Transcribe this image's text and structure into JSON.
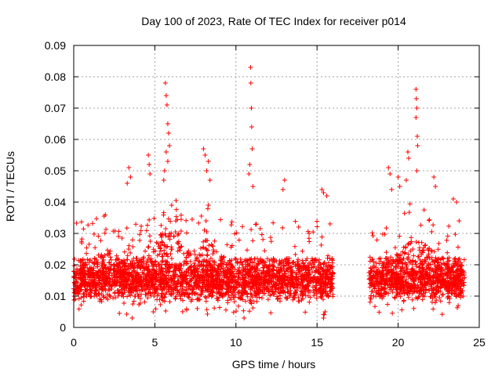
{
  "chart_data": {
    "type": "scatter",
    "title": "Day 100 of 2023, Rate Of TEC Index for receiver p014",
    "xlabel": "GPS time / hours",
    "ylabel": "ROTI / TECUs",
    "xlim": [
      0,
      25
    ],
    "ylim": [
      0,
      0.09
    ],
    "xticks": [
      "0",
      "5",
      "10",
      "15",
      "20",
      "25"
    ],
    "yticks": [
      "0",
      "0.01",
      "0.02",
      "0.03",
      "0.04",
      "0.05",
      "0.06",
      "0.07",
      "0.08",
      "0.09"
    ],
    "grid": true,
    "marker": "plus",
    "series_color": "#ff0000",
    "data_gap_hours": [
      16.0,
      18.2
    ],
    "series": [
      {
        "name": "ROTI",
        "points": [
          [
            5.65,
            0.078
          ],
          [
            5.7,
            0.074
          ],
          [
            5.75,
            0.071
          ],
          [
            5.8,
            0.065
          ],
          [
            5.85,
            0.062
          ],
          [
            5.9,
            0.058
          ],
          [
            5.7,
            0.056
          ],
          [
            5.8,
            0.053
          ],
          [
            5.6,
            0.05
          ],
          [
            5.55,
            0.047
          ],
          [
            10.9,
            0.083
          ],
          [
            10.92,
            0.078
          ],
          [
            10.95,
            0.07
          ],
          [
            10.97,
            0.064
          ],
          [
            11.0,
            0.057
          ],
          [
            10.85,
            0.052
          ],
          [
            10.8,
            0.049
          ],
          [
            11.05,
            0.045
          ],
          [
            21.1,
            0.076
          ],
          [
            21.12,
            0.073
          ],
          [
            21.15,
            0.07
          ],
          [
            21.1,
            0.067
          ],
          [
            21.18,
            0.061
          ],
          [
            21.2,
            0.058
          ],
          [
            20.6,
            0.056
          ],
          [
            20.65,
            0.054
          ],
          [
            21.15,
            0.05
          ],
          [
            20.5,
            0.047
          ],
          [
            3.4,
            0.051
          ],
          [
            3.5,
            0.048
          ],
          [
            3.3,
            0.046
          ],
          [
            4.6,
            0.055
          ],
          [
            4.65,
            0.052
          ],
          [
            4.7,
            0.049
          ],
          [
            8.0,
            0.057
          ],
          [
            8.1,
            0.055
          ],
          [
            8.3,
            0.053
          ],
          [
            8.2,
            0.05
          ],
          [
            8.4,
            0.047
          ],
          [
            13.0,
            0.047
          ],
          [
            12.9,
            0.044
          ],
          [
            15.3,
            0.044
          ],
          [
            15.4,
            0.043
          ],
          [
            15.6,
            0.042
          ],
          [
            19.4,
            0.051
          ],
          [
            19.5,
            0.049
          ],
          [
            19.6,
            0.044
          ],
          [
            20.0,
            0.048
          ],
          [
            20.1,
            0.045
          ],
          [
            22.2,
            0.048
          ],
          [
            22.3,
            0.045
          ],
          [
            23.4,
            0.041
          ],
          [
            23.6,
            0.04
          ],
          [
            15.4,
            0.003
          ],
          [
            15.5,
            0.005
          ],
          [
            10.5,
            0.003
          ],
          [
            3.6,
            0.003
          ],
          [
            4.9,
            0.005
          ]
        ]
      }
    ]
  }
}
